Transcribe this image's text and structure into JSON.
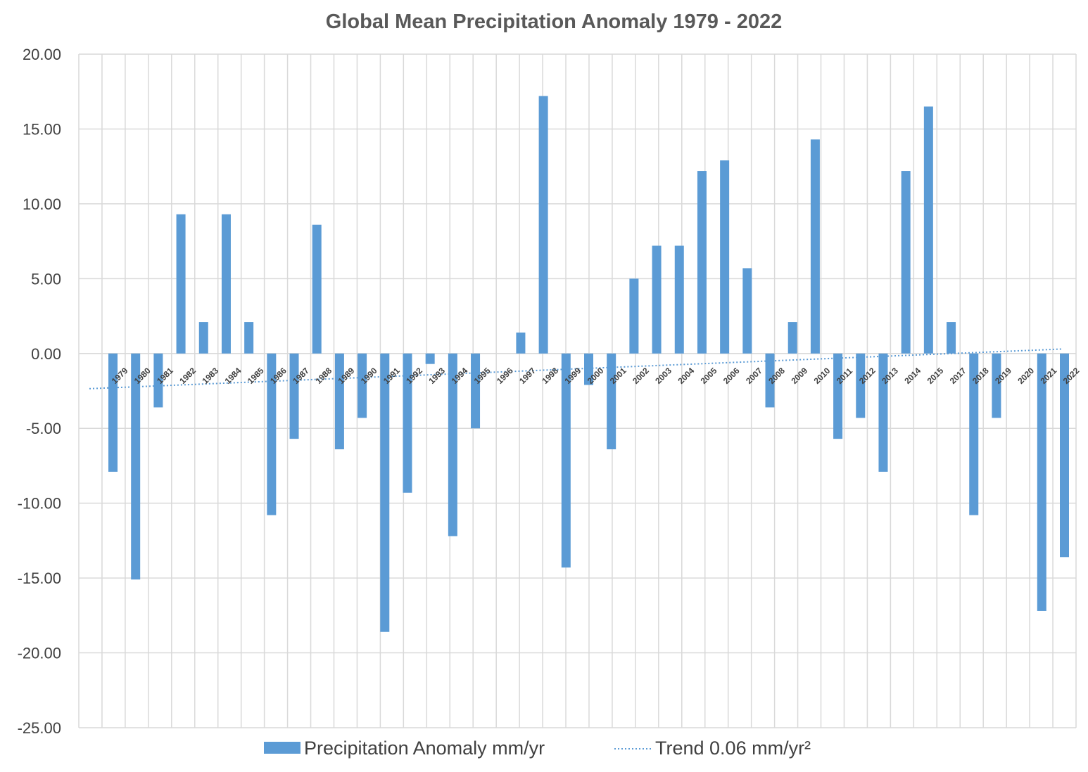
{
  "chart_data": {
    "type": "bar",
    "title": "Global Mean Precipitation Anomaly 1979 - 2022",
    "xlabel": "",
    "ylabel": "",
    "ylim": [
      -25,
      20
    ],
    "yticks": [
      "20.00",
      "15.00",
      "10.00",
      "5.00",
      "0.00",
      "-5.00",
      "-10.00",
      "-15.00",
      "-20.00",
      "-25.00"
    ],
    "ytick_values": [
      20,
      15,
      10,
      5,
      0,
      -5,
      -10,
      -15,
      -20,
      -25
    ],
    "categories": [
      "1979",
      "1980",
      "1981",
      "1982",
      "1983",
      "1984",
      "1985",
      "1986",
      "1987",
      "1988",
      "1989",
      "1990",
      "1991",
      "1992",
      "1993",
      "1994",
      "1995",
      "1996",
      "1997",
      "1998",
      "1999",
      "2000",
      "2001",
      "2002",
      "2003",
      "2004",
      "2005",
      "2006",
      "2007",
      "2008",
      "2009",
      "2010",
      "2011",
      "2012",
      "2013",
      "2014",
      "2015",
      "2017",
      "2018",
      "2019",
      "2020",
      "2021",
      "2022"
    ],
    "series": [
      {
        "name": "Precipitation Anomaly mm/yr",
        "color": "#5b9bd5",
        "values": [
          -7.9,
          -15.1,
          -3.6,
          9.3,
          2.1,
          9.3,
          2.1,
          -10.8,
          -5.7,
          8.6,
          -6.4,
          -4.3,
          -18.6,
          -9.3,
          -0.7,
          -12.2,
          -5.0,
          0.0,
          1.4,
          17.2,
          -14.3,
          -2.1,
          -6.4,
          5.0,
          7.2,
          7.2,
          12.2,
          12.9,
          5.7,
          -3.6,
          2.1,
          14.3,
          -5.7,
          -4.3,
          -7.9,
          12.2,
          16.5,
          2.1,
          -10.8,
          -4.3,
          0.0,
          -17.2,
          -13.6
        ]
      }
    ],
    "trend": {
      "name": "Trend 0.06 mm/yr²",
      "color": "#5b9bd5",
      "style": "dotted",
      "start_value": -2.35,
      "end_value": 0.3
    },
    "legend": {
      "placement": "bottom",
      "entries": [
        "Precipitation Anomaly mm/yr",
        "Trend 0.06 mm/yr²"
      ]
    },
    "grid": true
  }
}
